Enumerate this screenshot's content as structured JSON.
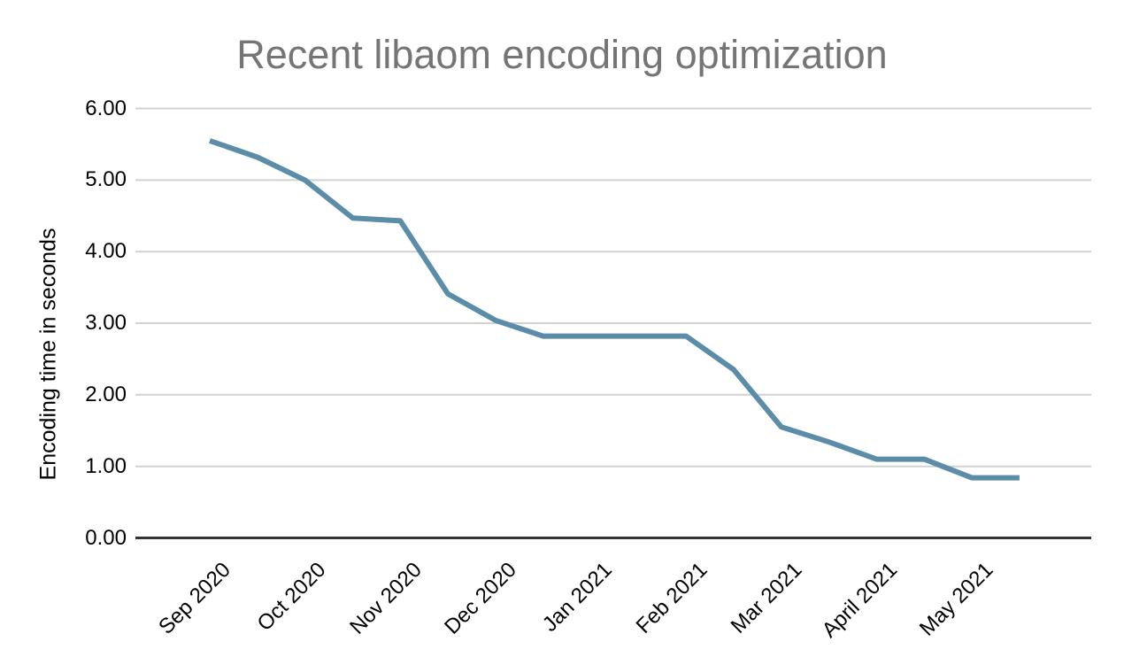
{
  "chart": {
    "title": "Recent libaom encoding optimization",
    "y_axis_title": "Encoding time in seconds"
  },
  "chart_data": {
    "type": "line",
    "title": "Recent libaom encoding optimization",
    "xlabel": "",
    "ylabel": "Encoding time in seconds",
    "categories": [
      "Sep 2020",
      "Oct 2020",
      "Nov 2020",
      "Dec 2020",
      "Jan 2021",
      "Feb 2021",
      "Mar 2021",
      "April 2021",
      "May 2021"
    ],
    "points_per_category": 2,
    "x_index": [
      0,
      0.5,
      1,
      1.5,
      2,
      2.5,
      3,
      3.5,
      4,
      4.5,
      5,
      5.5,
      6,
      6.5,
      7,
      7.5,
      8,
      8.5
    ],
    "series": [
      {
        "name": "Encoding time",
        "values": [
          5.55,
          5.32,
          5.0,
          4.47,
          4.43,
          3.41,
          3.04,
          2.82,
          2.82,
          2.82,
          2.82,
          2.35,
          1.55,
          1.34,
          1.1,
          1.1,
          0.84,
          0.84
        ]
      }
    ],
    "yticks": [
      "0.00",
      "1.00",
      "2.00",
      "3.00",
      "4.00",
      "5.00",
      "6.00"
    ],
    "ylim": [
      0,
      6
    ],
    "grid": "horizontal",
    "legend": "none",
    "line_color": "#5b8ca8",
    "grid_color": "#d2d2d2",
    "axis_color": "#333333",
    "title_color": "#757575",
    "tick_text_color": "#000000"
  }
}
